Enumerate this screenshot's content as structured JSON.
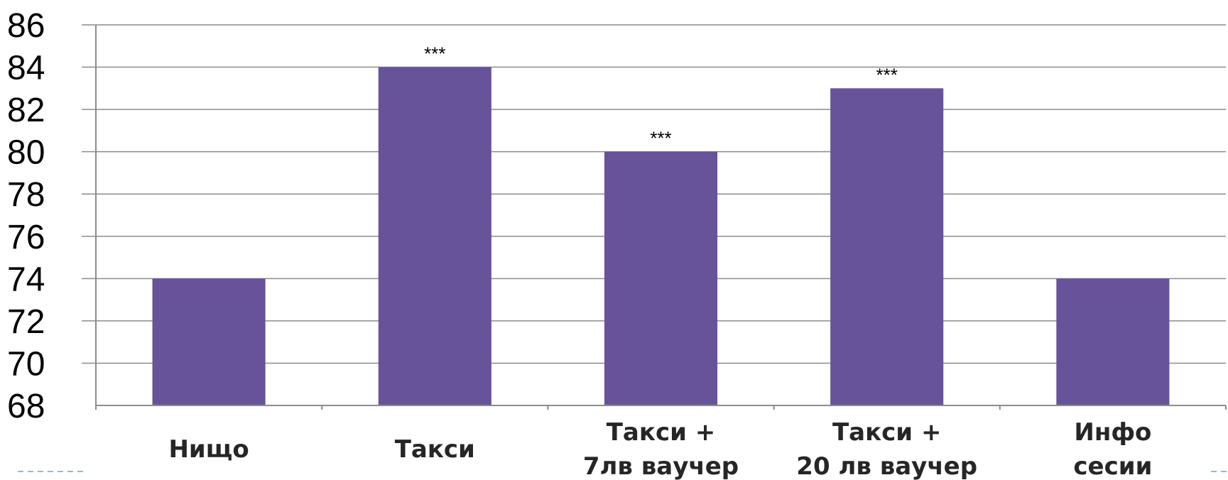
{
  "chart_data": {
    "type": "bar",
    "categories": [
      [
        "Нищо"
      ],
      [
        "Такси"
      ],
      [
        "Такси +",
        "7лв ваучер"
      ],
      [
        "Такси +",
        "20 лв ваучер"
      ],
      [
        "Инфо",
        "сесии"
      ]
    ],
    "values": [
      74,
      84,
      80,
      83,
      74
    ],
    "annotations": [
      "",
      "***",
      "***",
      "***",
      ""
    ],
    "y_ticks": [
      "68",
      "70",
      "72",
      "74",
      "76",
      "78",
      "80",
      "82",
      "84",
      "86"
    ],
    "ylim": [
      68,
      86
    ],
    "grid": true,
    "legend": "none",
    "title": "",
    "xlabel": "",
    "ylabel": "",
    "bar_color": "#66539a"
  }
}
